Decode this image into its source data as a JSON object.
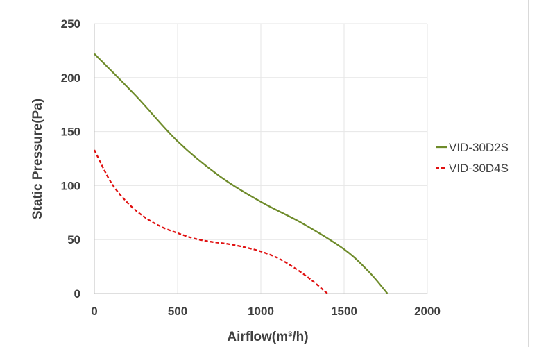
{
  "chart_data": {
    "type": "line",
    "xlabel": "Airflow(m³/h)",
    "ylabel": "Static Pressure(Pa)",
    "xlim": [
      0,
      2000
    ],
    "ylim": [
      0,
      250
    ],
    "xticks": [
      "0",
      "500",
      "1000",
      "1500",
      "2000"
    ],
    "yticks": [
      "0",
      "50",
      "100",
      "150",
      "200",
      "250"
    ],
    "grid": true,
    "legend_position": "right",
    "series": [
      {
        "name": "VID-30D2S",
        "color": "#6e8b2a",
        "style": "solid",
        "x": [
          0,
          250,
          500,
          750,
          1000,
          1250,
          1500,
          1650,
          1760
        ],
        "y": [
          222,
          183,
          141,
          109,
          85,
          65,
          41,
          20,
          0
        ]
      },
      {
        "name": "VID-30D4S",
        "color": "#e01010",
        "style": "dashed",
        "x": [
          0,
          100,
          200,
          300,
          400,
          500,
          600,
          700,
          800,
          900,
          1000,
          1100,
          1200,
          1300,
          1400
        ],
        "y": [
          133,
          103,
          84,
          71,
          62,
          56,
          51,
          48,
          46,
          43,
          39,
          33,
          24,
          13,
          0
        ]
      }
    ]
  }
}
